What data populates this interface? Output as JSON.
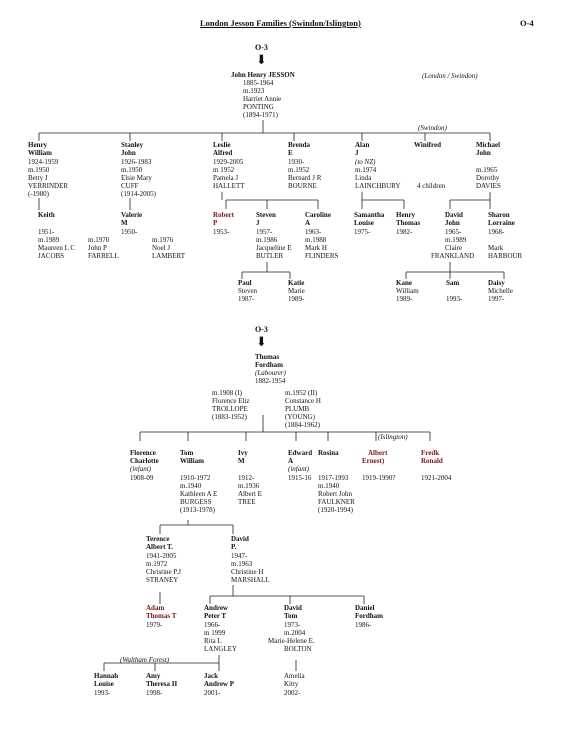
{
  "header": {
    "title": "London Jesson Families (Swindon/Islington)",
    "page_code": "O-4"
  },
  "colors": {
    "ink": "#111111",
    "highlight": "#7a1414"
  },
  "tree1": {
    "ref": "O-3",
    "root": {
      "name": "John Henry JESSON",
      "lines": [
        "1885-1964",
        "m.1923",
        "Harriet Annie",
        "PONTING",
        "(1894-1971)"
      ]
    },
    "location_note": "(London / Swindon)",
    "swindon_note": "(Swindon)",
    "children": [
      {
        "first": "Henry",
        "second": "William",
        "lines": [
          "1924-1959",
          "m.1950",
          "Betty J",
          "VERRINDER",
          "(-1980)"
        ]
      },
      {
        "first": "Stanley",
        "second": "John",
        "lines": [
          "1926-1983",
          "m.1950",
          "Elsie Mary",
          "CUFF",
          "(1914-2005)"
        ]
      },
      {
        "first": "Leslie",
        "second": "Alfred",
        "lines": [
          "1929-2005",
          "m 1952",
          "Pamela J",
          "HALLETT"
        ]
      },
      {
        "first": "Brenda",
        "second": "E",
        "lines": [
          "1930-",
          "m.1952",
          "Bernard J R",
          "BOURNE"
        ]
      },
      {
        "first": "Alan",
        "second": "J",
        "lines": [
          "(to NZ)",
          "m.1974",
          "Linda",
          "LAINCHBURY"
        ]
      },
      {
        "first": "Winifred",
        "second": "",
        "lines": [
          "4 children"
        ]
      },
      {
        "first": "Michael",
        "second": "John",
        "lines": [
          "",
          "m.1965",
          "Dorothy",
          "DAVIES"
        ]
      }
    ],
    "grandchildren": {
      "keith": {
        "first": "Keith",
        "lines": [
          "1951-",
          "m.1989",
          "Maureen L C",
          "JACOBS"
        ]
      },
      "valerie": {
        "first": "Valerie",
        "second": "M",
        "lines": [
          "1950-"
        ]
      },
      "valerie_m1": [
        "m.1970",
        "John P",
        "FARRELL"
      ],
      "valerie_m2": [
        "m.1976",
        "Noel J",
        "LAMBERT"
      ],
      "robert": {
        "first": "Robert",
        "second": "P",
        "lines": [
          "1953-"
        ]
      },
      "steven": {
        "first": "Steven",
        "second": "J",
        "lines": [
          "1957-",
          "m.1986",
          "Jacqueline E",
          "BUTLER"
        ]
      },
      "caroline": {
        "first": "Caroline",
        "second": "A",
        "lines": [
          "1963-",
          "m.1988",
          "Mark H",
          "FLINDERS"
        ]
      },
      "samantha": {
        "first": "Samantha",
        "second": "Louise",
        "lines": [
          "1975-"
        ]
      },
      "henry": {
        "first": "Henry",
        "second": "Thomas",
        "lines": [
          "1982-"
        ]
      },
      "david": {
        "first": "David",
        "second": "John",
        "lines": [
          "1965-",
          "m.1989",
          "Claire",
          "FRANKLAND"
        ]
      },
      "sharon": {
        "first": "Sharon",
        "second": "Lorraine",
        "lines": [
          "1968-",
          "",
          "Mark",
          "HARBOUR"
        ]
      }
    },
    "great_grandchildren": [
      {
        "first": "Paul",
        "second": "Steven",
        "lines": [
          "1987-"
        ]
      },
      {
        "first": "Katie",
        "second": "Marie",
        "lines": [
          "1989-"
        ]
      },
      {
        "first": "Kane",
        "second": "William",
        "lines": [
          "1989-"
        ]
      },
      {
        "first": "Sam",
        "second": "",
        "lines": [
          "1993-"
        ]
      },
      {
        "first": "Daisy",
        "second": "Michelle",
        "lines": [
          "1997-"
        ]
      }
    ]
  },
  "tree2": {
    "ref": "O-3",
    "root": {
      "first": "Thomas",
      "second": "Fordham",
      "occupation": "(Labourer)",
      "dates": "1882-1954"
    },
    "marriage1": [
      "m.1908 (I)",
      "Florence Eliz",
      "TROLLOPE",
      "(1883-1952)"
    ],
    "marriage2": [
      "m.1952 (II)",
      "Constance H",
      "PLUMB",
      "(YOUNG)",
      "(1884-1962)"
    ],
    "islington_note": "(Islington)",
    "children": [
      {
        "first": "Florence",
        "second": "Charlotte",
        "third": "(infant)",
        "lines": [
          "1908-09"
        ]
      },
      {
        "first": "Tom",
        "second": "William",
        "lines": [
          "1910-1972",
          "m.1940",
          "Kathleen A E",
          "BURGESS",
          "(1913-1978)"
        ]
      },
      {
        "first": "Ivy",
        "second": "M",
        "lines": [
          "1912-",
          "m.1936",
          "Albert E",
          "TREE"
        ]
      },
      {
        "first": "Edward",
        "second": "A",
        "third": "(infant)",
        "lines": [
          "1915-16"
        ]
      },
      {
        "first": "Rosina",
        "second": "",
        "lines": [
          "1917-1993",
          "m.1940",
          "Robert John",
          "FAULKNER",
          "(1920-1994)"
        ]
      },
      {
        "first": "Albert",
        "second": "Ernest)",
        "lines": [
          "1919-1990?"
        ]
      },
      {
        "first": "Fredk",
        "second": "Ronald",
        "lines": [
          "1921-2004"
        ]
      }
    ],
    "grandchildren": [
      {
        "first": "Terence",
        "second": "Albert T.",
        "lines": [
          "1941-2005",
          "m.1972",
          "Christine P.J",
          "STRANEY"
        ]
      },
      {
        "first": "David",
        "second": "P.",
        "lines": [
          "1947-",
          "m.1963",
          "Christine H",
          "MARSHALL"
        ]
      }
    ],
    "great_grandchildren": [
      {
        "first": "Adam",
        "second": "Thomas T",
        "lines": [
          "1979-"
        ]
      },
      {
        "first": "Andrew",
        "second": "Peter T",
        "lines": [
          "1966-",
          "m 1999",
          "Rita L",
          "LANGLEY"
        ]
      },
      {
        "first": "David",
        "second": "Tom",
        "lines": [
          "1973-",
          "m.2004",
          "Marie-Helene E.",
          "BOLTON"
        ]
      },
      {
        "first": "Daniel",
        "second": "Fordham",
        "lines": [
          "1986-"
        ]
      }
    ],
    "waltham_note": "(Waltham Forest)",
    "gen5": [
      {
        "first": "Hannah",
        "second": "Louise",
        "lines": [
          "1993-"
        ]
      },
      {
        "first": "Amy",
        "second": "Theresa II",
        "lines": [
          "1998-"
        ]
      },
      {
        "first": "Jack",
        "second": "Andrew P",
        "lines": [
          "2001-"
        ]
      },
      {
        "first": "Amelia",
        "second": "Kitty",
        "lines": [
          "2002-"
        ]
      }
    ]
  }
}
